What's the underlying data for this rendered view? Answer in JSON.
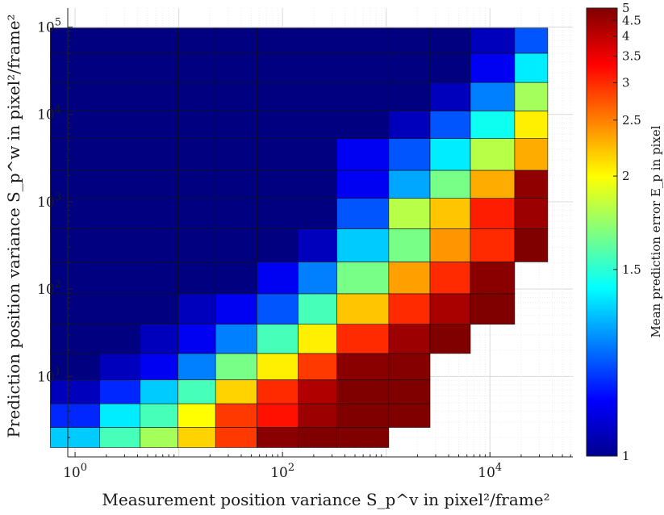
{
  "chart_data": {
    "type": "heatmap",
    "title": "",
    "xlabel": "Measurement position variance S_p^v in pixel²/frame²",
    "ylabel": "Prediction position variance S_p^w in pixel²/frame²",
    "x_scale": "log",
    "y_scale": "log",
    "x_tick_labels": [
      "10^0",
      "10^2",
      "10^4"
    ],
    "y_tick_labels": [
      "10^1",
      "10^2",
      "10^3",
      "10^4",
      "10^5"
    ],
    "x_cells": [
      1,
      3,
      6,
      16,
      32,
      100,
      200,
      560,
      2000,
      3500,
      12000,
      25000
    ],
    "y_cells": [
      2,
      3.4,
      7,
      12,
      28,
      56,
      140,
      300,
      800,
      1500,
      3500,
      8000,
      15000,
      36000,
      70000
    ],
    "values": [
      [
        1.35,
        1.55,
        1.75,
        2.15,
        2.9,
        4.8,
        5,
        5,
        null,
        null,
        null,
        null
      ],
      [
        1.15,
        1.4,
        1.55,
        2.0,
        2.9,
        3.2,
        4.5,
        5,
        5,
        null,
        null,
        null
      ],
      [
        1.05,
        1.15,
        1.35,
        1.55,
        2.15,
        3.0,
        4.2,
        5,
        5,
        null,
        null,
        null
      ],
      [
        1.0,
        1.05,
        1.1,
        1.25,
        1.65,
        2.05,
        2.9,
        4.8,
        4.9,
        null,
        null,
        null
      ],
      [
        1.0,
        1.0,
        1.05,
        1.1,
        1.25,
        1.55,
        2.05,
        3.0,
        4.5,
        5,
        null,
        null
      ],
      [
        1.0,
        1.0,
        1.0,
        1.05,
        1.1,
        1.2,
        1.55,
        2.2,
        3.0,
        4.3,
        5,
        null
      ],
      [
        1.0,
        1.0,
        1.0,
        1.0,
        1.0,
        1.1,
        1.25,
        1.65,
        2.35,
        3.0,
        4.8,
        null
      ],
      [
        1.0,
        1.0,
        1.0,
        1.0,
        1.0,
        1.0,
        1.05,
        1.35,
        1.65,
        2.4,
        3.0,
        5
      ],
      [
        1.0,
        1.0,
        1.0,
        1.0,
        1.0,
        1.0,
        1.0,
        1.2,
        1.8,
        2.2,
        3.1,
        4.5
      ],
      [
        1.0,
        1.0,
        1.0,
        1.0,
        1.0,
        1.0,
        1.0,
        1.1,
        1.3,
        1.65,
        2.3,
        4.7
      ],
      [
        1.0,
        1.0,
        1.0,
        1.0,
        1.0,
        1.0,
        1.0,
        1.1,
        1.2,
        1.4,
        1.8,
        2.3
      ],
      [
        1.0,
        1.0,
        1.0,
        1.0,
        1.0,
        1.0,
        1.0,
        1.0,
        1.05,
        1.2,
        1.45,
        2.05
      ],
      [
        1.0,
        1.0,
        1.0,
        1.0,
        1.0,
        1.0,
        1.0,
        1.0,
        1.0,
        1.05,
        1.25,
        1.75
      ],
      [
        1.0,
        1.0,
        1.0,
        1.0,
        1.0,
        1.0,
        1.0,
        1.0,
        1.0,
        1.0,
        1.1,
        1.4
      ],
      [
        1.0,
        1.0,
        1.0,
        1.0,
        1.0,
        1.0,
        1.0,
        1.0,
        1.0,
        1.0,
        1.05,
        1.2
      ]
    ],
    "colorbar": {
      "label": "Mean prediction error E_p in pixel",
      "range": [
        1,
        5
      ],
      "tick_labels": [
        "1",
        "1.5",
        "2",
        "2.5",
        "3",
        "3.5",
        "4",
        "4.5",
        "5"
      ],
      "colormap": "jet"
    },
    "grid": true
  }
}
